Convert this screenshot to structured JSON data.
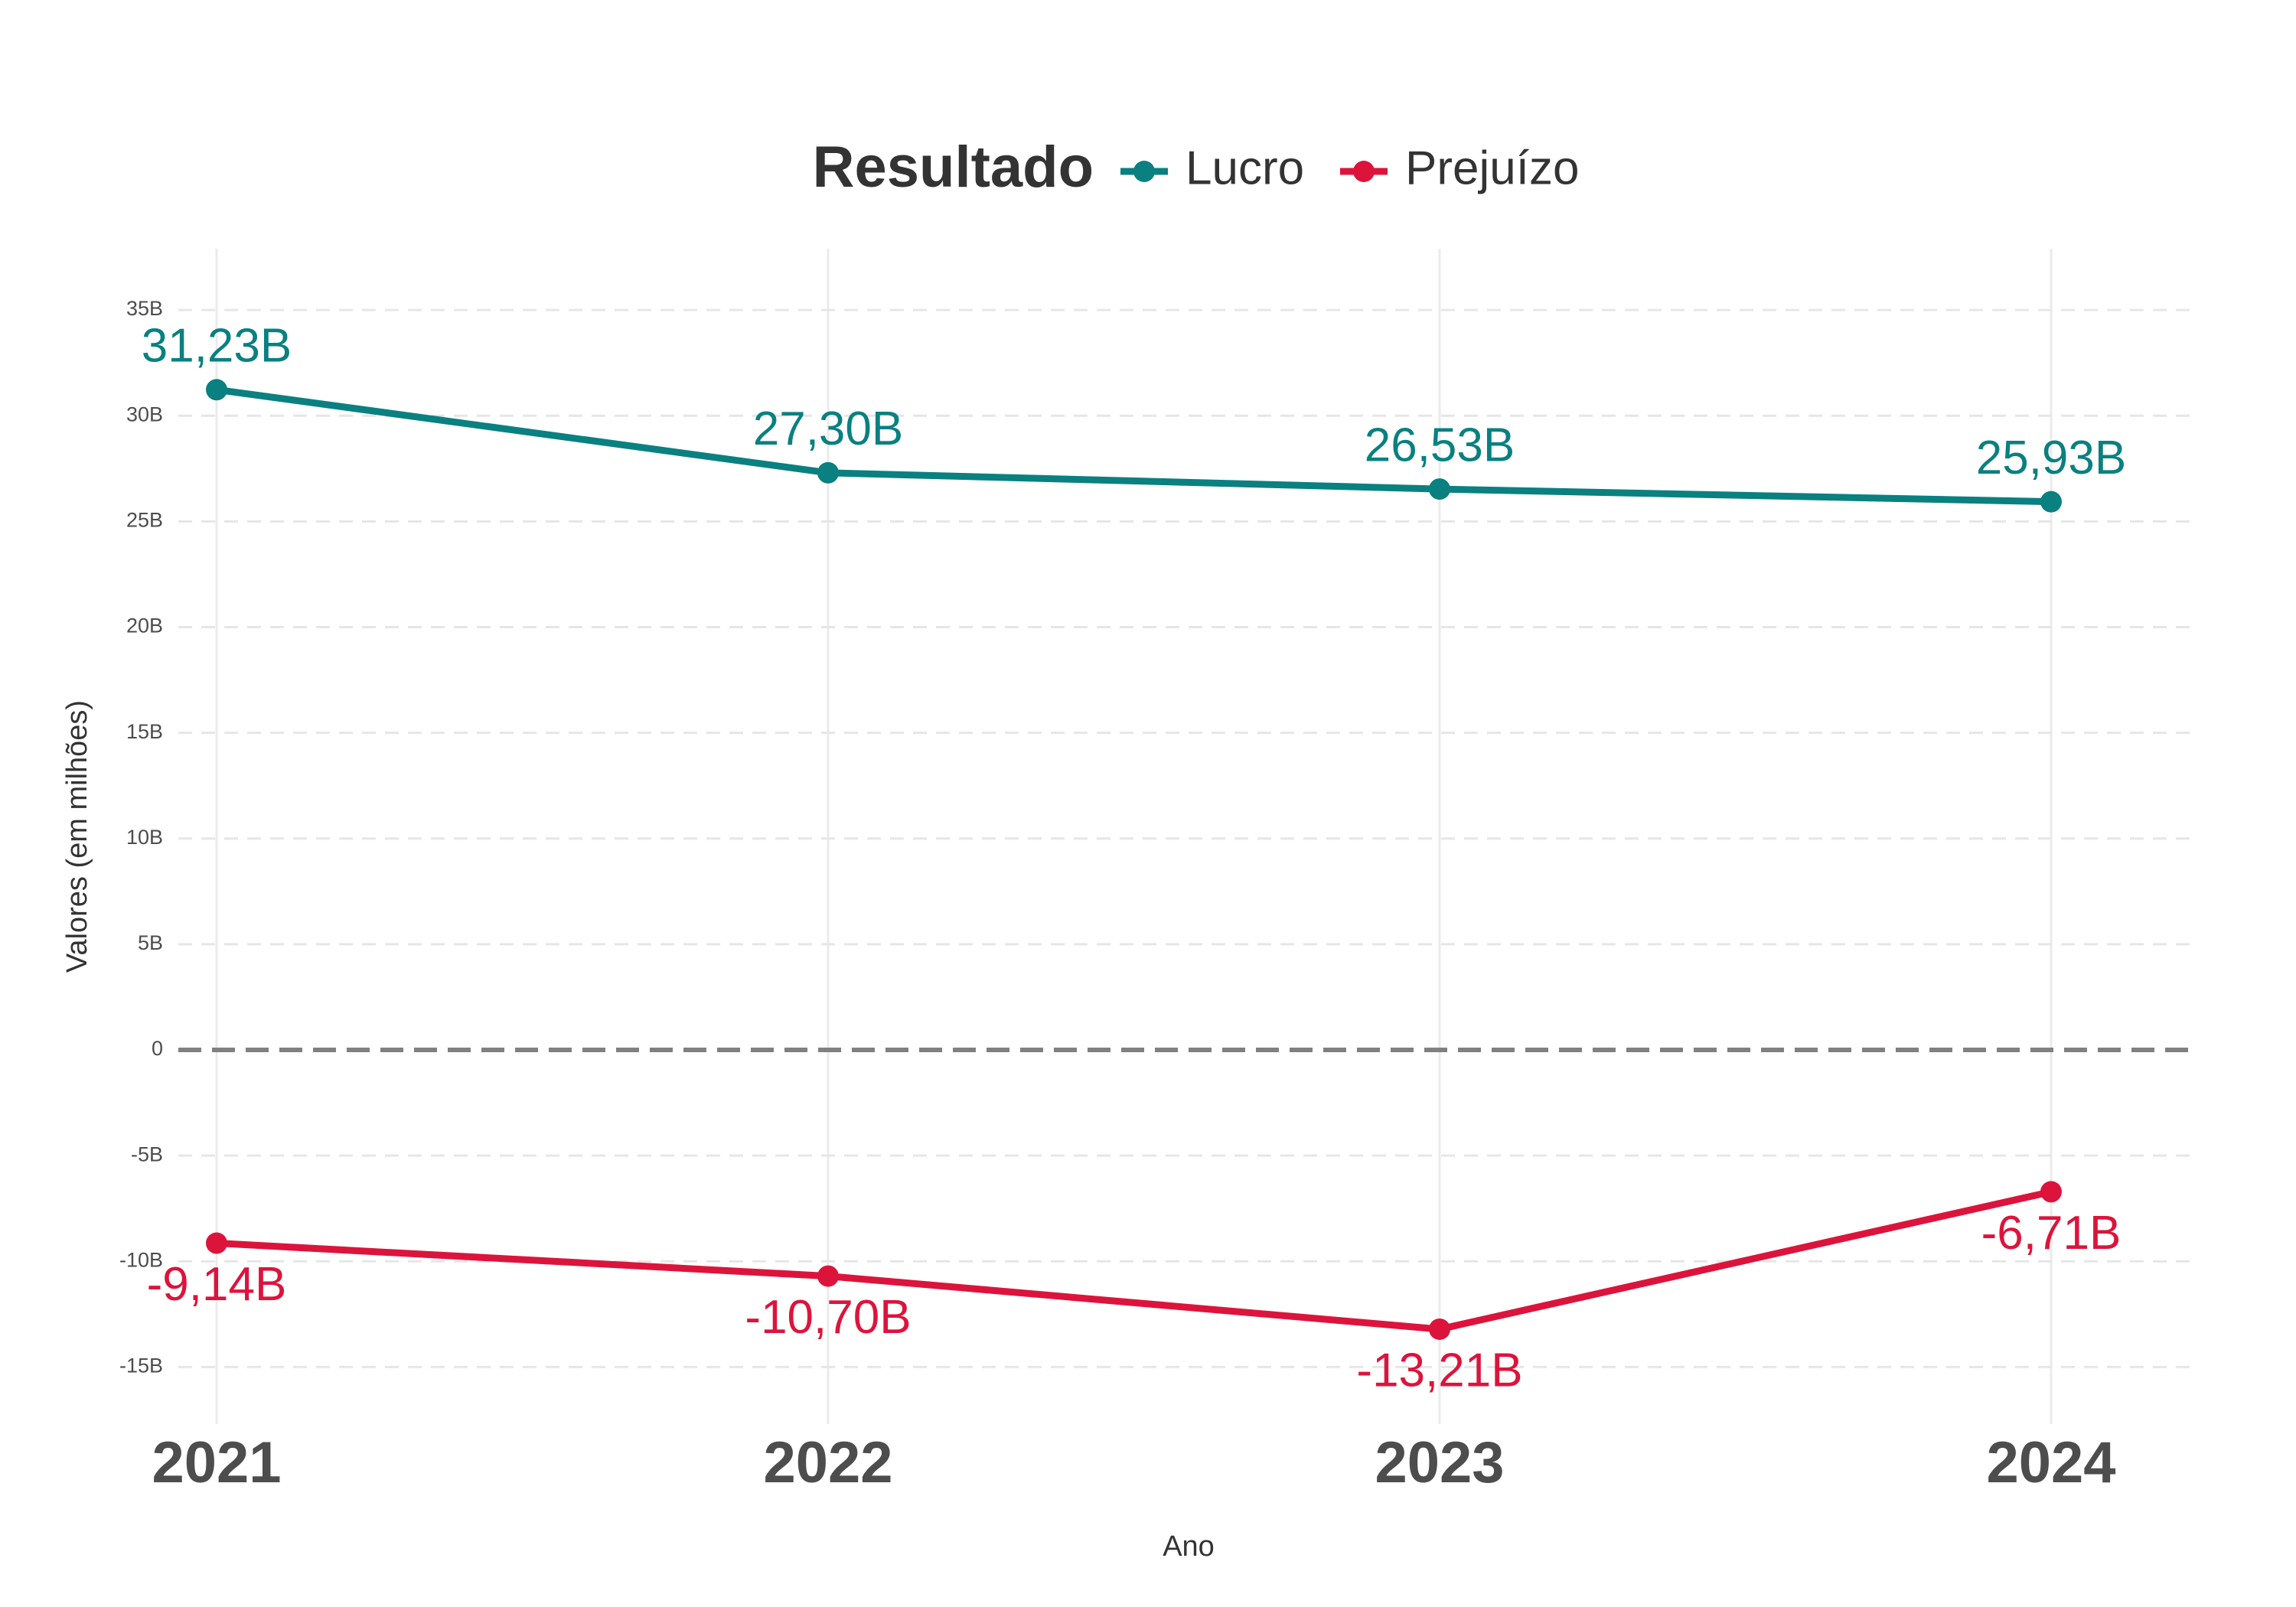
{
  "chart_data": {
    "type": "line",
    "legend_title": "Resultado",
    "x_label": "Ano",
    "y_label": "Valores (em milhões)",
    "categories": [
      "2021",
      "2022",
      "2023",
      "2024"
    ],
    "series": [
      {
        "name": "Lucro",
        "color": "#0a8080",
        "values": [
          31.23,
          27.3,
          26.53,
          25.93
        ],
        "value_labels": [
          "31,23B",
          "27,30B",
          "26,53B",
          "25,93B"
        ]
      },
      {
        "name": "Prejuízo",
        "color": "#dc143c",
        "values": [
          -9.14,
          -10.7,
          -13.21,
          -6.71
        ],
        "value_labels": [
          "-9,14B",
          "-10,70B",
          "-13,21B",
          "-6,71B"
        ]
      }
    ],
    "ylim": [
      -17.7,
      37.9
    ],
    "yticks": [
      {
        "value": -15,
        "label": "-15B"
      },
      {
        "value": -10,
        "label": "-10B"
      },
      {
        "value": -5,
        "label": "-5B"
      },
      0,
      {
        "value": 5,
        "label": "5B"
      },
      {
        "value": 10,
        "label": "10B"
      },
      {
        "value": 15,
        "label": "15B"
      },
      {
        "value": 20,
        "label": "20B"
      },
      {
        "value": 25,
        "label": "25B"
      },
      {
        "value": 30,
        "label": "30B"
      },
      {
        "value": 35,
        "label": "35B"
      }
    ],
    "grid": true,
    "legend": "top"
  }
}
